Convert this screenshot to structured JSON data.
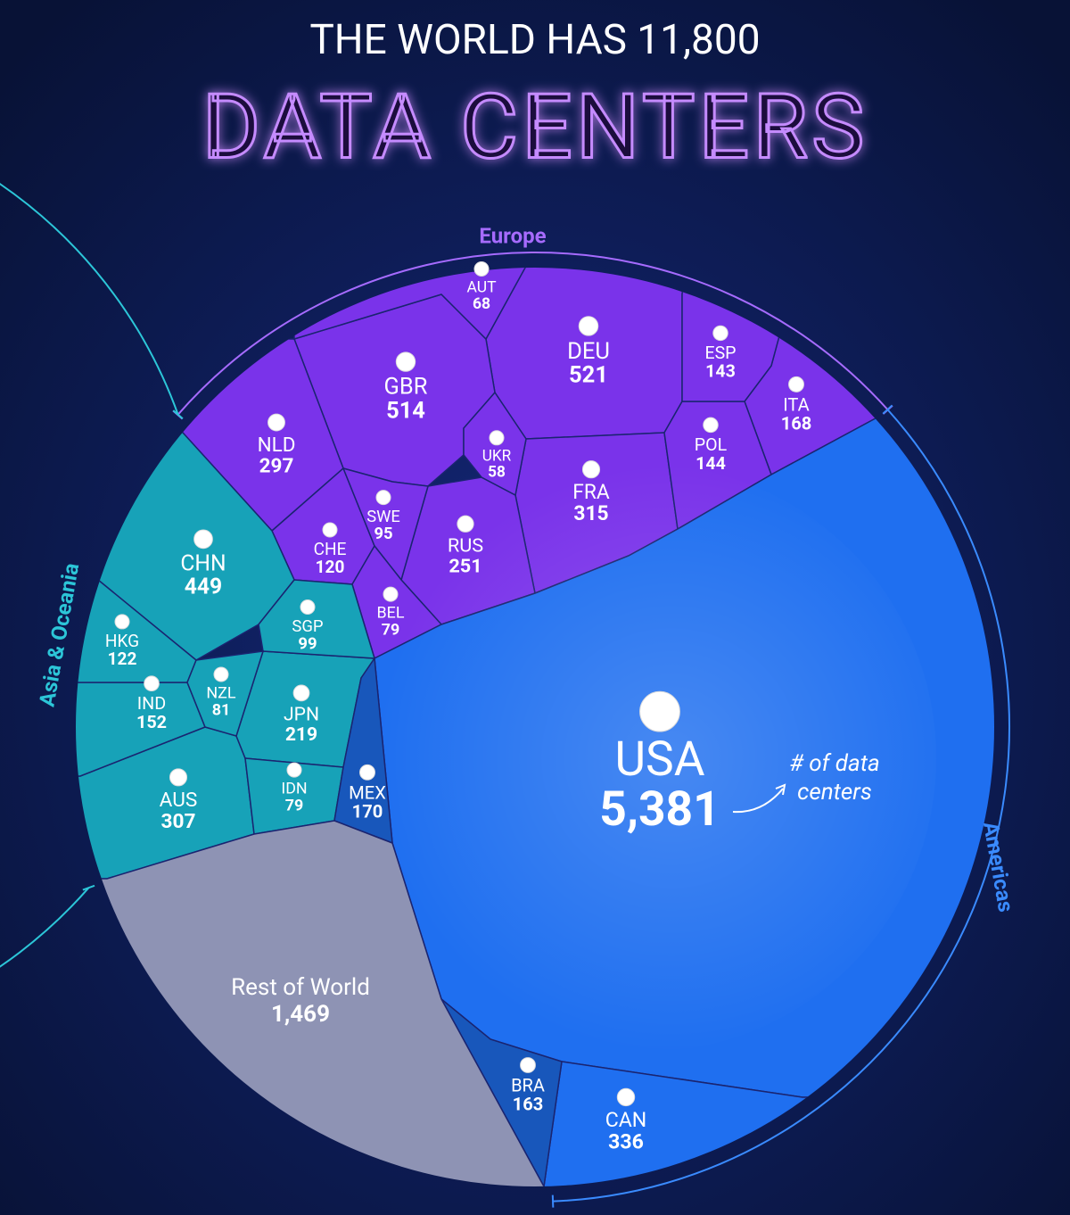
{
  "chart_data": {
    "type": "voronoi",
    "title": "THE WORLD HAS 11,800",
    "subtitle": "DATA CENTERS",
    "annotation": [
      "# of data",
      "centers"
    ],
    "series": [
      {
        "name": "Europe",
        "color": "#7a33ea",
        "categories": [
          "DEU",
          "GBR",
          "FRA",
          "NLD",
          "RUS",
          "ITA",
          "POL",
          "ESP",
          "CHE",
          "SWE",
          "BEL",
          "AUT",
          "UKR"
        ],
        "values": [
          521,
          514,
          315,
          297,
          251,
          168,
          144,
          143,
          120,
          95,
          79,
          68,
          58
        ]
      },
      {
        "name": "Asia & Oceania",
        "color": "#17a2b8",
        "categories": [
          "CHN",
          "AUS",
          "JPN",
          "IND",
          "HKG",
          "SGP",
          "NZL",
          "IDN"
        ],
        "values": [
          449,
          307,
          219,
          152,
          122,
          99,
          81,
          79
        ]
      },
      {
        "name": "Americas",
        "color": "#1f6ff0",
        "categories": [
          "USA",
          "CAN",
          "MEX",
          "BRA"
        ],
        "values": [
          5381,
          336,
          170,
          163
        ],
        "value_labels": [
          "5,381",
          "336",
          "170",
          "163"
        ]
      }
    ],
    "rest": {
      "name": "Rest of World",
      "value": 1469,
      "value_label": "1,469",
      "color": "#8e93b4"
    }
  }
}
